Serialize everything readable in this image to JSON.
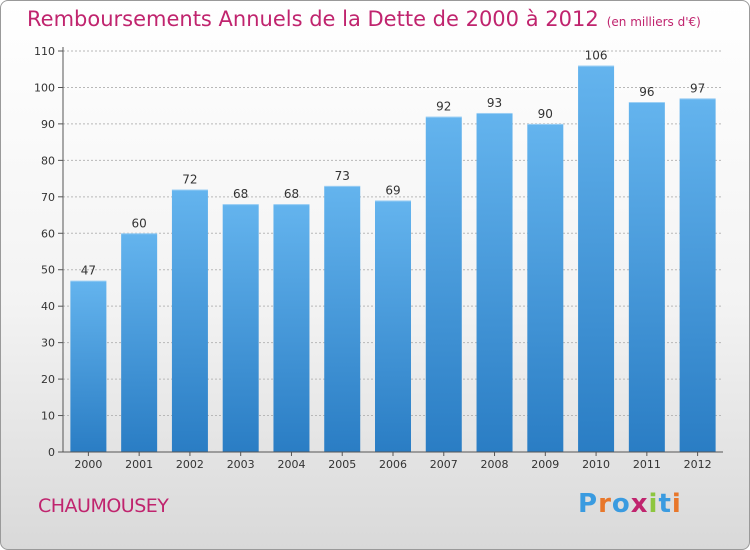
{
  "header": {
    "title": "Remboursements Annuels de la Dette de 2000 à 2012",
    "unit": "(en milliers d'€)"
  },
  "commune": "CHAUMOUSEY",
  "logo": {
    "text": "Proxiti",
    "letters": [
      "P",
      "r",
      "o",
      "x",
      "i",
      "t",
      "i"
    ],
    "colors": [
      "#3a9be0",
      "#e8772a",
      "#3a9be0",
      "#c0246e",
      "#8dc63f",
      "#3a9be0",
      "#e8772a"
    ]
  },
  "colors": {
    "bar_light": "#64b4ee",
    "bar_dark": "#2a7dc4",
    "title": "#c0246e"
  },
  "chart_data": {
    "type": "bar",
    "title": "Remboursements Annuels de la Dette de 2000 à 2012",
    "ylabel": "en milliers d'€",
    "xlabel": "",
    "categories": [
      "2000",
      "2001",
      "2002",
      "2003",
      "2004",
      "2005",
      "2006",
      "2007",
      "2008",
      "2009",
      "2010",
      "2011",
      "2012"
    ],
    "values": [
      47,
      60,
      72,
      68,
      68,
      73,
      69,
      92,
      93,
      90,
      106,
      96,
      97
    ],
    "ylim": [
      0,
      110
    ],
    "yticks": [
      0,
      10,
      20,
      30,
      40,
      50,
      60,
      70,
      80,
      90,
      100,
      110
    ],
    "grid": true,
    "legend": "none"
  }
}
